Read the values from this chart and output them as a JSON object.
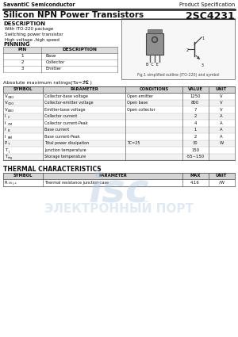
{
  "company": "SavantiC Semiconductor",
  "spec_type": "Product Specification",
  "title": "Silicon NPN Power Transistors",
  "part_number": "2SC4231",
  "description_title": "DESCRIPTION",
  "description_items": [
    "With ITO-220 package",
    "Switching power transistor",
    "High voltage ,high speed"
  ],
  "pinning_title": "PINNING",
  "pinning_headers": [
    "PIN",
    "DESCRIPTION"
  ],
  "pinning_rows": [
    [
      "1",
      "Base"
    ],
    [
      "2",
      "Collector"
    ],
    [
      "3",
      "Emitter"
    ]
  ],
  "fig_caption": "Fig.1 simplified outline (ITO-220) and symbol",
  "abs_max_title": "Absolute maximum ratings(Ta=25 )",
  "abs_max_headers": [
    "SYMBOL",
    "PARAMETER",
    "CONDITIONS",
    "VALUE",
    "UNIT"
  ],
  "abs_max_symbols": [
    "VCBO",
    "VCEO",
    "VEBO",
    "IC",
    "ICM",
    "IB",
    "IBM",
    "PT",
    "Tj",
    "Tstg"
  ],
  "abs_max_params": [
    "Collector-base voltage",
    "Collector-emitter voltage",
    "Emitter-base voltage",
    "Collector current",
    "Collector current-Peak",
    "Base current",
    "Base current-Peak",
    "Total power dissipation",
    "Junction temperature",
    "Storage temperature"
  ],
  "abs_max_conds": [
    "Open emitter",
    "Open base",
    "Open collector",
    "",
    "",
    "",
    "",
    "TC=25",
    "",
    ""
  ],
  "abs_max_values": [
    "1250",
    "800",
    "7",
    "2",
    "4",
    "1",
    "2",
    "30",
    "150",
    "-55~150"
  ],
  "abs_max_units": [
    "V",
    "V",
    "V",
    "A",
    "A",
    "A",
    "A",
    "W",
    "",
    ""
  ],
  "thermal_title": "THERMAL CHARACTERISTICS",
  "thermal_headers": [
    "SYMBOL",
    "PARAMETER",
    "MAX",
    "UNIT"
  ],
  "thermal_symbol": "Rth j-c",
  "thermal_param": "Thermal resistance junction-case",
  "thermal_max": "4.16",
  "thermal_unit": "/W",
  "bg_color": "#ffffff",
  "watermark_color": "#a8c4e0"
}
